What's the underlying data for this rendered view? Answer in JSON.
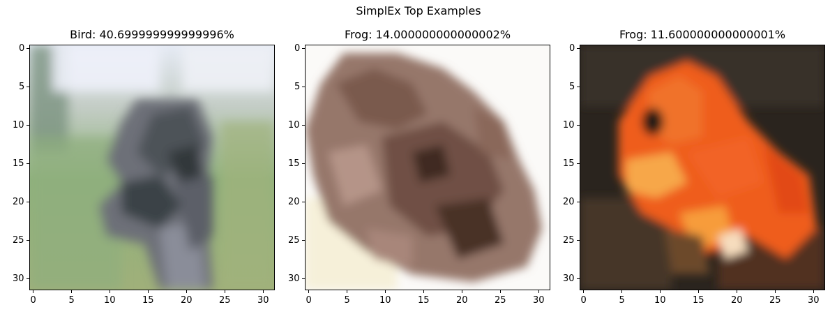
{
  "figure": {
    "title": "SimplEx Top Examples"
  },
  "chart_data": [
    {
      "type": "image",
      "title": "Bird: 40.699999999999996%",
      "xticks": [
        0,
        5,
        10,
        15,
        20,
        25,
        30
      ],
      "yticks": [
        0,
        5,
        10,
        15,
        20,
        25,
        30
      ],
      "xlim": [
        -0.5,
        31.5
      ],
      "ylim": [
        31.5,
        -0.5
      ],
      "grid": false,
      "description_colors": [
        "#e9eef6",
        "#9bb08c",
        "#6f7a7d",
        "#3c4448",
        "#aab08a"
      ]
    },
    {
      "type": "image",
      "title": "Frog: 14.000000000000002%",
      "xticks": [
        0,
        5,
        10,
        15,
        20,
        25,
        30
      ],
      "yticks": [
        0,
        5,
        10,
        15,
        20,
        25,
        30
      ],
      "xlim": [
        -0.5,
        31.5
      ],
      "ylim": [
        31.5,
        -0.5
      ],
      "grid": false,
      "description_colors": [
        "#fbfaf7",
        "#8c6a5d",
        "#5d4035",
        "#c6a69a",
        "#f6eed0"
      ]
    },
    {
      "type": "image",
      "title": "Frog: 11.600000000000001%",
      "xticks": [
        0,
        5,
        10,
        15,
        20,
        25,
        30
      ],
      "yticks": [
        0,
        5,
        10,
        15,
        20,
        25,
        30
      ],
      "xlim": [
        -0.5,
        31.5
      ],
      "ylim": [
        31.5,
        -0.5
      ],
      "grid": false,
      "description_colors": [
        "#2b241d",
        "#ef5a1c",
        "#f6a13f",
        "#5a4331",
        "#7a2515"
      ]
    }
  ]
}
